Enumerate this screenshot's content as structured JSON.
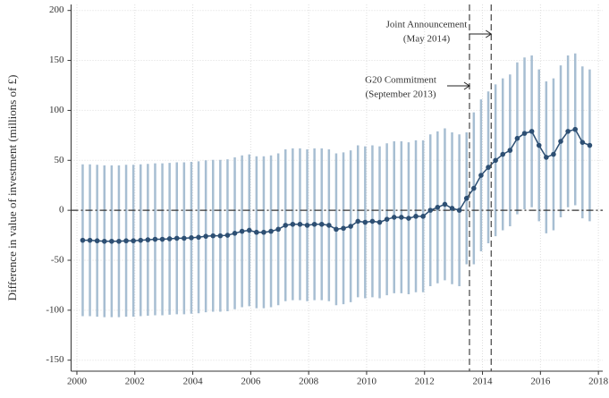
{
  "chart_data": {
    "type": "line",
    "y_label": "Difference in value of investment (millions of £)",
    "x": [
      2000.2,
      2000.45,
      2000.7,
      2000.95,
      2001.2,
      2001.45,
      2001.7,
      2001.95,
      2002.2,
      2002.45,
      2002.7,
      2002.95,
      2003.2,
      2003.45,
      2003.7,
      2003.95,
      2004.2,
      2004.45,
      2004.7,
      2004.95,
      2005.2,
      2005.45,
      2005.7,
      2005.95,
      2006.2,
      2006.45,
      2006.7,
      2006.95,
      2007.2,
      2007.45,
      2007.7,
      2007.95,
      2008.2,
      2008.45,
      2008.7,
      2008.95,
      2009.2,
      2009.45,
      2009.7,
      2009.95,
      2010.2,
      2010.45,
      2010.7,
      2010.95,
      2011.2,
      2011.45,
      2011.7,
      2011.95,
      2012.2,
      2012.45,
      2012.7,
      2012.95,
      2013.2,
      2013.45,
      2013.7,
      2013.95,
      2014.2,
      2014.45,
      2014.7,
      2014.95,
      2015.2,
      2015.45,
      2015.7,
      2015.95,
      2016.2,
      2016.45,
      2016.7,
      2016.95,
      2017.2,
      2017.45,
      2017.7
    ],
    "values": [
      -30,
      -30,
      -30.5,
      -31,
      -31,
      -31,
      -30.5,
      -30.5,
      -30,
      -29.5,
      -29,
      -29,
      -28.5,
      -28,
      -28,
      -27.5,
      -27,
      -26,
      -25.5,
      -25.5,
      -25,
      -23,
      -21,
      -20,
      -22,
      -22,
      -21,
      -19,
      -15,
      -14,
      -14,
      -15,
      -14,
      -14,
      -15,
      -19,
      -18,
      -16,
      -11,
      -12,
      -11,
      -12,
      -9,
      -7,
      -7,
      -8,
      -6,
      -6,
      0,
      3,
      6,
      2,
      0,
      12,
      22,
      35,
      43,
      50,
      56,
      60,
      72,
      77,
      79,
      65,
      53,
      56,
      69,
      79,
      81,
      68,
      65
    ],
    "errors": [
      76,
      76,
      76,
      76,
      76,
      76,
      76,
      76,
      76,
      76,
      76,
      76,
      76,
      76,
      76,
      76,
      76,
      76,
      76,
      76,
      76,
      76,
      76,
      76,
      76,
      76,
      76,
      76,
      76,
      76,
      76,
      76,
      76,
      76,
      76,
      76,
      76,
      76,
      76,
      76,
      76,
      76,
      76,
      76,
      76,
      76,
      76,
      76,
      76,
      76,
      76,
      76,
      76,
      66,
      76,
      76,
      76,
      76,
      76,
      76,
      76,
      76,
      76,
      76,
      76,
      76,
      76,
      76,
      76,
      76,
      76
    ],
    "color": "#2d4f73",
    "error_color": "#a7bed2",
    "xlim": [
      1999.8,
      2018.15
    ],
    "ylim": [
      -161,
      206
    ],
    "xticks": [
      2000,
      2002,
      2004,
      2006,
      2008,
      2010,
      2012,
      2014,
      2016,
      2018
    ],
    "yticks": [
      -150,
      -100,
      -50,
      0,
      50,
      100,
      150,
      200
    ],
    "grid": true,
    "hline": 0,
    "vlines": [
      2013.55,
      2014.3
    ],
    "annotations": [
      {
        "lines": [
          "Joint Announcement",
          "(May 2014)"
        ],
        "x": 2014.3
      },
      {
        "lines": [
          "G20 Commitment",
          "(September 2013)"
        ],
        "x": 2013.55
      }
    ]
  }
}
